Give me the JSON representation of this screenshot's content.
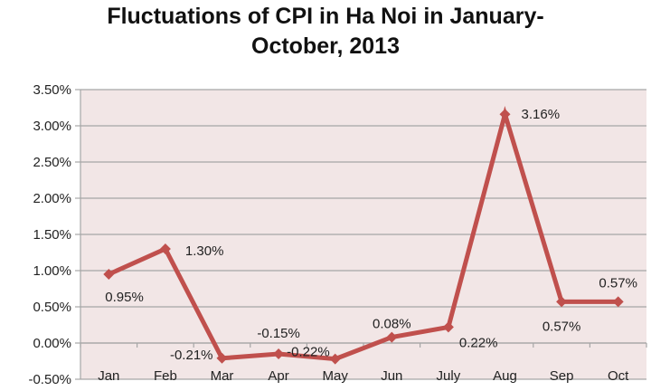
{
  "chart_data": {
    "type": "line",
    "title_line1": "Fluctuations of CPI in Ha Noi in January-",
    "title_line2": "October, 2013",
    "categories": [
      "Jan",
      "Feb",
      "Mar",
      "Apr",
      "May",
      "Jun",
      "July",
      "Aug",
      "Sep",
      "Oct"
    ],
    "values": [
      0.95,
      1.3,
      -0.21,
      -0.15,
      -0.22,
      0.08,
      0.22,
      3.16,
      0.57,
      0.57
    ],
    "data_labels": [
      "0.95%",
      "1.30%",
      "-0.21%",
      "-0.15%",
      "-0.22%",
      "0.08%",
      "0.22%",
      "3.16%",
      "0.57%",
      "0.57%"
    ],
    "ylim": [
      -0.5,
      3.5
    ],
    "yticks": [
      -0.5,
      0,
      0.5,
      1,
      1.5,
      2,
      2.5,
      3,
      3.5
    ],
    "ytick_labels": [
      "-0.50%",
      "0.00%",
      "0.50%",
      "1.00%",
      "1.50%",
      "2.00%",
      "2.50%",
      "3.00%",
      "3.50%"
    ],
    "xlabel": "",
    "ylabel": "",
    "grid": true,
    "legend": "none",
    "colors": {
      "line": "#c0504d",
      "plot_bg": "#f2e6e6",
      "grid": "#a6a6a6"
    }
  }
}
